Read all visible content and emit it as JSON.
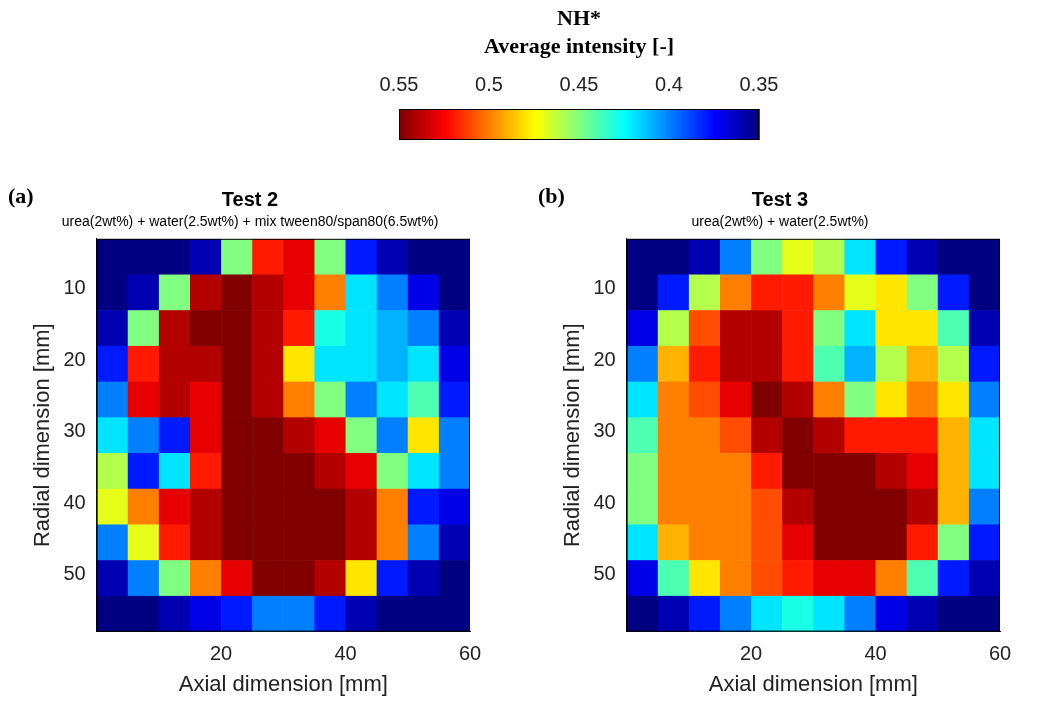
{
  "colorbar": {
    "title": [
      "NH*",
      "Average intensity [-]"
    ],
    "range": [
      0.55,
      0.35
    ],
    "ticks": [
      0.55,
      0.5,
      0.45,
      0.4,
      0.35
    ]
  },
  "chart_data": [
    {
      "type": "heatmap",
      "panel": "(a)",
      "title": "Test 2",
      "subtitle": "urea(2wt%) + water(2.5wt%) + mix tween80/span80(6.5wt%)",
      "x_label": "Axial dimension [mm]",
      "y_label": "Radial dimension [mm]",
      "xlim": [
        0,
        60
      ],
      "xticks": [
        20,
        40,
        60
      ],
      "ylim": [
        58,
        3
      ],
      "yticks": [
        10,
        20,
        30,
        40,
        50
      ],
      "cells": {
        "x": [
          2.5,
          7.5,
          12.5,
          17.5,
          22.5,
          27.5,
          32.5,
          37.5,
          42.5,
          47.5,
          52.5,
          57.5
        ],
        "y": [
          5.5,
          10.5,
          15.5,
          20.5,
          25.5,
          30.5,
          35.5,
          40.5,
          45.5,
          50.5,
          55.5
        ],
        "values": [
          [
            0.35,
            0.35,
            0.35,
            0.36,
            0.45,
            0.52,
            0.53,
            0.45,
            0.38,
            0.36,
            0.35,
            0.35
          ],
          [
            0.35,
            0.36,
            0.45,
            0.54,
            0.55,
            0.54,
            0.53,
            0.5,
            0.42,
            0.4,
            0.37,
            0.35
          ],
          [
            0.36,
            0.45,
            0.54,
            0.55,
            0.55,
            0.54,
            0.52,
            0.43,
            0.42,
            0.41,
            0.4,
            0.36
          ],
          [
            0.38,
            0.52,
            0.54,
            0.54,
            0.55,
            0.54,
            0.48,
            0.42,
            0.42,
            0.41,
            0.42,
            0.37
          ],
          [
            0.4,
            0.53,
            0.54,
            0.53,
            0.55,
            0.54,
            0.5,
            0.45,
            0.4,
            0.42,
            0.44,
            0.38
          ],
          [
            0.42,
            0.4,
            0.38,
            0.53,
            0.55,
            0.55,
            0.54,
            0.53,
            0.45,
            0.4,
            0.48,
            0.4
          ],
          [
            0.46,
            0.38,
            0.42,
            0.52,
            0.55,
            0.55,
            0.55,
            0.54,
            0.53,
            0.45,
            0.42,
            0.4
          ],
          [
            0.47,
            0.5,
            0.53,
            0.54,
            0.55,
            0.55,
            0.55,
            0.55,
            0.54,
            0.5,
            0.38,
            0.37
          ],
          [
            0.4,
            0.47,
            0.52,
            0.54,
            0.55,
            0.55,
            0.55,
            0.55,
            0.54,
            0.5,
            0.4,
            0.36
          ],
          [
            0.36,
            0.4,
            0.45,
            0.5,
            0.53,
            0.55,
            0.55,
            0.54,
            0.48,
            0.38,
            0.36,
            0.35
          ],
          [
            0.35,
            0.35,
            0.36,
            0.37,
            0.38,
            0.4,
            0.4,
            0.38,
            0.36,
            0.35,
            0.35,
            0.35
          ]
        ]
      }
    },
    {
      "type": "heatmap",
      "panel": "(b)",
      "title": "Test 3",
      "subtitle": "urea(2wt%) + water(2.5wt%)",
      "x_label": "Axial dimension [mm]",
      "y_label": "Radial dimension [mm]",
      "xlim": [
        0,
        60
      ],
      "xticks": [
        20,
        40,
        60
      ],
      "ylim": [
        58,
        3
      ],
      "yticks": [
        10,
        20,
        30,
        40,
        50
      ],
      "cells": {
        "x": [
          2.5,
          7.5,
          12.5,
          17.5,
          22.5,
          27.5,
          32.5,
          37.5,
          42.5,
          47.5,
          52.5,
          57.5
        ],
        "y": [
          5.5,
          10.5,
          15.5,
          20.5,
          25.5,
          30.5,
          35.5,
          40.5,
          45.5,
          50.5,
          55.5
        ],
        "values": [
          [
            0.35,
            0.35,
            0.36,
            0.4,
            0.45,
            0.47,
            0.46,
            0.42,
            0.38,
            0.36,
            0.35,
            0.35
          ],
          [
            0.35,
            0.38,
            0.46,
            0.5,
            0.52,
            0.52,
            0.5,
            0.47,
            0.48,
            0.45,
            0.38,
            0.35
          ],
          [
            0.37,
            0.46,
            0.51,
            0.54,
            0.54,
            0.52,
            0.45,
            0.42,
            0.48,
            0.48,
            0.44,
            0.36
          ],
          [
            0.4,
            0.49,
            0.52,
            0.54,
            0.54,
            0.52,
            0.44,
            0.41,
            0.46,
            0.49,
            0.46,
            0.38
          ],
          [
            0.42,
            0.5,
            0.51,
            0.53,
            0.55,
            0.54,
            0.5,
            0.45,
            0.48,
            0.5,
            0.48,
            0.4
          ],
          [
            0.44,
            0.5,
            0.5,
            0.51,
            0.54,
            0.55,
            0.54,
            0.52,
            0.52,
            0.52,
            0.49,
            0.42
          ],
          [
            0.45,
            0.5,
            0.5,
            0.5,
            0.52,
            0.55,
            0.55,
            0.55,
            0.54,
            0.53,
            0.49,
            0.42
          ],
          [
            0.45,
            0.5,
            0.5,
            0.5,
            0.51,
            0.54,
            0.55,
            0.55,
            0.55,
            0.54,
            0.49,
            0.4
          ],
          [
            0.42,
            0.49,
            0.5,
            0.5,
            0.51,
            0.53,
            0.55,
            0.55,
            0.55,
            0.52,
            0.45,
            0.38
          ],
          [
            0.37,
            0.44,
            0.48,
            0.5,
            0.51,
            0.52,
            0.53,
            0.53,
            0.5,
            0.44,
            0.38,
            0.36
          ],
          [
            0.35,
            0.36,
            0.38,
            0.4,
            0.42,
            0.43,
            0.42,
            0.4,
            0.37,
            0.36,
            0.35,
            0.35
          ]
        ]
      }
    }
  ]
}
